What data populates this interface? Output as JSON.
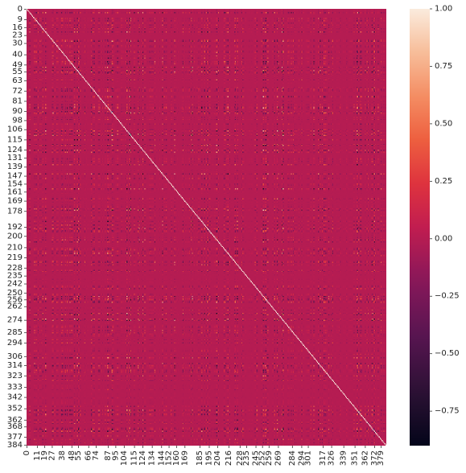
{
  "chart_data": {
    "type": "heatmap",
    "title": "",
    "xlabel": "",
    "ylabel": "",
    "n": 385,
    "row_tick_labels": [
      "0",
      "9",
      "16",
      "23",
      "30",
      "40",
      "49",
      "55",
      "63",
      "72",
      "81",
      "90",
      "98",
      "106",
      "115",
      "124",
      "131",
      "139",
      "147",
      "154",
      "161",
      "169",
      "178",
      "192",
      "200",
      "210",
      "219",
      "228",
      "235",
      "242",
      "250",
      "256",
      "262",
      "274",
      "285",
      "294",
      "306",
      "314",
      "323",
      "333",
      "342",
      "352",
      "362",
      "368",
      "377",
      "384"
    ],
    "col_tick_labels": [
      "0",
      "11",
      "19",
      "27",
      "38",
      "48",
      "55",
      "66",
      "74",
      "87",
      "95",
      "104",
      "115",
      "124",
      "134",
      "144",
      "152",
      "160",
      "169",
      "185",
      "195",
      "204",
      "216",
      "228",
      "235",
      "245",
      "252",
      "259",
      "269",
      "284",
      "294",
      "301",
      "317",
      "326",
      "339",
      "351",
      "362",
      "372",
      "379"
    ],
    "value_range": [
      -0.9,
      1.0
    ],
    "colorbar": {
      "ticks": [
        "1.00",
        "0.75",
        "0.50",
        "0.25",
        "0.00",
        "−0.25",
        "−0.50",
        "−0.75"
      ],
      "tick_values": [
        1.0,
        0.75,
        0.5,
        0.25,
        0.0,
        -0.25,
        -0.5,
        -0.75
      ]
    },
    "colormap": "rocket",
    "diagonal_value": 1.0,
    "dominant_value": 0.0
  }
}
